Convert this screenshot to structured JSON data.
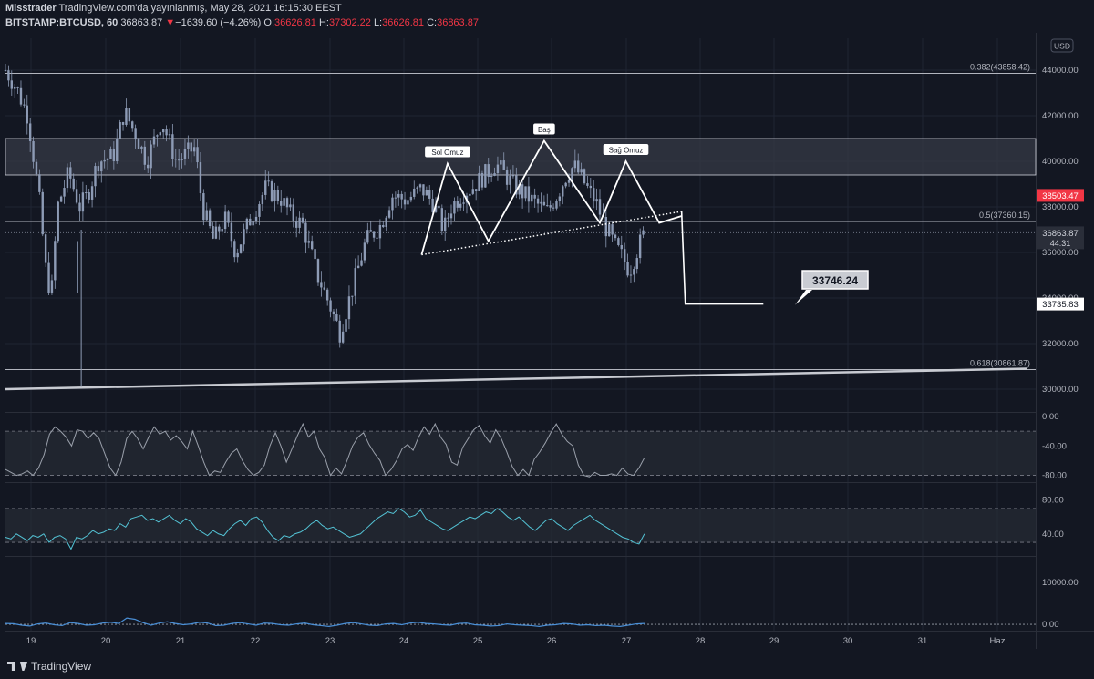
{
  "header": {
    "author": "Misstrader",
    "published": "TradingView.com'da yayınlanmış, May 28, 2021 16:15:30 EEST",
    "symbol": "BITSTAMP:BTCUSD, 60",
    "last_price": "36863.87",
    "change_arrow": "▼",
    "change": "−1639.60 (−4.26%)",
    "o_label": "O:",
    "o_value": "36626.81",
    "h_label": "H:",
    "h_value": "37302.22",
    "l_label": "L:",
    "l_value": "36626.81",
    "c_label": "C:",
    "c_value": "36863.87"
  },
  "colors": {
    "background": "#131722",
    "grid": "#1f2433",
    "candle": "#8d9bb5",
    "pattern_line": "#ffffff",
    "fib_line": "#b2b5be",
    "zone_fill": "#363a45",
    "osc_line": "#9aa0ab",
    "rsi_line": "#53c2d4",
    "bottom_line": "#4a8fd6",
    "price_badge_red": "#f23645"
  },
  "footer": {
    "logo_text": "TradingView"
  },
  "chart_data": {
    "type": "candlestick",
    "currency": "USD",
    "x_tick_labels": [
      "19",
      "20",
      "21",
      "22",
      "23",
      "24",
      "25",
      "26",
      "27",
      "28",
      "29",
      "30",
      "31",
      "Haz"
    ],
    "main_pane": {
      "y_ticks": [
        30000,
        32000,
        34000,
        36000,
        38000,
        40000,
        42000,
        44000
      ],
      "y_tick_labels": [
        "30000.00",
        "32000.00",
        "34000.00",
        "36000.00",
        "38000.00",
        "40000.00",
        "42000.00",
        "44000.00"
      ],
      "ylim": [
        29000,
        45400
      ],
      "close_path": [
        [
          0,
          44000
        ],
        [
          0.15,
          43200
        ],
        [
          0.3,
          42000
        ],
        [
          0.45,
          38500
        ],
        [
          0.55,
          35000
        ],
        [
          0.62,
          34200
        ],
        [
          0.7,
          38000
        ],
        [
          0.85,
          39500
        ],
        [
          1.0,
          38000
        ],
        [
          1.1,
          38500
        ],
        [
          1.25,
          40000
        ],
        [
          1.45,
          40200
        ],
        [
          1.6,
          42200
        ],
        [
          1.75,
          41200
        ],
        [
          1.9,
          40000
        ],
        [
          2.1,
          41800
        ],
        [
          2.3,
          40000
        ],
        [
          2.55,
          40600
        ],
        [
          2.65,
          38000
        ],
        [
          2.8,
          36500
        ],
        [
          2.95,
          37500
        ],
        [
          3.1,
          36000
        ],
        [
          3.3,
          37500
        ],
        [
          3.5,
          38800
        ],
        [
          3.7,
          38400
        ],
        [
          3.85,
          37600
        ],
        [
          4.0,
          37200
        ],
        [
          4.2,
          35000
        ],
        [
          4.35,
          33800
        ],
        [
          4.5,
          32500
        ],
        [
          4.65,
          34200
        ],
        [
          4.85,
          36500
        ],
        [
          5.05,
          37200
        ],
        [
          5.2,
          38500
        ],
        [
          5.4,
          38300
        ],
        [
          5.6,
          38800
        ],
        [
          5.75,
          38200
        ],
        [
          5.9,
          37000
        ],
        [
          6.0,
          38000
        ],
        [
          6.15,
          38600
        ],
        [
          6.3,
          38900
        ],
        [
          6.45,
          39400
        ],
        [
          6.6,
          39900
        ],
        [
          6.7,
          39500
        ],
        [
          6.85,
          38900
        ],
        [
          7.0,
          38500
        ],
        [
          7.2,
          38000
        ],
        [
          7.3,
          37800
        ],
        [
          7.45,
          38700
        ],
        [
          7.55,
          39400
        ],
        [
          7.65,
          39800
        ],
        [
          7.75,
          39300
        ],
        [
          7.85,
          38700
        ],
        [
          7.95,
          38200
        ],
        [
          8.05,
          37300
        ],
        [
          8.2,
          36300
        ],
        [
          8.3,
          35800
        ],
        [
          8.4,
          35200
        ],
        [
          8.5,
          36100
        ],
        [
          8.6,
          36863.87
        ]
      ],
      "current_price": 36863.87,
      "current_price_label": "36863.87",
      "countdown": "44:31",
      "red_badge_label": "38503.47",
      "red_badge_value": 38503.47,
      "target_label": "33746.24",
      "target_level": 33735.83,
      "target_level_label": "33735.83",
      "resistance_zone": [
        39400,
        41000
      ],
      "fib_levels": [
        {
          "label": "0.382(43858.42)",
          "value": 43858.42
        },
        {
          "label": "0.5(37360.15)",
          "value": 37360.15
        },
        {
          "label": "0.618(30861.87)",
          "value": 30861.87
        }
      ],
      "long_trendline": [
        [
          0,
          30000
        ],
        [
          10.8,
          30900
        ]
      ],
      "head_shoulders": {
        "path": [
          [
            5.6,
            35900
          ],
          [
            5.95,
            39900
          ],
          [
            6.5,
            36500
          ],
          [
            7.25,
            40900
          ],
          [
            8.0,
            37300
          ],
          [
            8.35,
            40000
          ],
          [
            8.8,
            37300
          ],
          [
            9.1,
            37600
          ]
        ],
        "neckline": [
          [
            5.6,
            35900
          ],
          [
            9.1,
            37800
          ]
        ],
        "drop": [
          [
            9.1,
            37800
          ],
          [
            9.15,
            33735.83
          ],
          [
            10.2,
            33735.83
          ]
        ],
        "labels": [
          {
            "text": "Sol Omuz",
            "x": 5.95,
            "y": 39900
          },
          {
            "text": "Baş",
            "x": 7.25,
            "y": 40900
          },
          {
            "text": "Sağ Omuz",
            "x": 8.35,
            "y": 40000
          }
        ]
      }
    },
    "osc_pane": {
      "y_tick_labels": [
        "0.00",
        "-40.00",
        "-80.00"
      ],
      "y_ticks": [
        0,
        -40,
        -80
      ],
      "ylim": [
        -88,
        5
      ],
      "band": [
        -80,
        -20
      ],
      "values": [
        -72,
        -76,
        -80,
        -78,
        -74,
        -80,
        -70,
        -52,
        -24,
        -14,
        -20,
        -28,
        -40,
        -18,
        -20,
        -30,
        -22,
        -30,
        -50,
        -70,
        -80,
        -62,
        -30,
        -20,
        -30,
        -44,
        -28,
        -14,
        -24,
        -20,
        -32,
        -26,
        -34,
        -44,
        -20,
        -40,
        -62,
        -80,
        -74,
        -76,
        -62,
        -50,
        -44,
        -60,
        -72,
        -80,
        -76,
        -66,
        -40,
        -22,
        -40,
        -62,
        -44,
        -26,
        -10,
        -28,
        -20,
        -44,
        -56,
        -80,
        -70,
        -78,
        -60,
        -40,
        -28,
        -22,
        -38,
        -50,
        -60,
        -80,
        -72,
        -60,
        -44,
        -38,
        -46,
        -28,
        -14,
        -24,
        -10,
        -28,
        -38,
        -62,
        -66,
        -42,
        -30,
        -18,
        -12,
        -26,
        -36,
        -18,
        -30,
        -48,
        -68,
        -80,
        -72,
        -80,
        -58,
        -48,
        -36,
        -22,
        -10,
        -24,
        -34,
        -40,
        -66,
        -80,
        -82,
        -76,
        -80,
        -80,
        -78,
        -80,
        -70,
        -78,
        -80,
        -70,
        -56
      ]
    },
    "rsi_pane": {
      "y_tick_labels": [
        "80.00",
        "40.00"
      ],
      "y_ticks": [
        80,
        40
      ],
      "ylim": [
        15,
        100
      ],
      "band": [
        30,
        70
      ],
      "values": [
        36,
        34,
        40,
        36,
        32,
        38,
        36,
        40,
        30,
        36,
        38,
        34,
        22,
        36,
        34,
        38,
        44,
        40,
        42,
        46,
        44,
        52,
        48,
        58,
        60,
        62,
        56,
        58,
        54,
        58,
        62,
        56,
        52,
        58,
        54,
        46,
        42,
        38,
        44,
        40,
        38,
        46,
        52,
        56,
        50,
        58,
        60,
        54,
        44,
        36,
        32,
        38,
        36,
        40,
        42,
        46,
        52,
        56,
        50,
        46,
        48,
        44,
        40,
        36,
        38,
        40,
        46,
        52,
        58,
        62,
        66,
        64,
        70,
        66,
        60,
        62,
        68,
        58,
        54,
        50,
        46,
        44,
        48,
        52,
        56,
        60,
        58,
        62,
        66,
        64,
        70,
        66,
        60,
        56,
        60,
        54,
        48,
        44,
        50,
        56,
        58,
        52,
        48,
        44,
        50,
        54,
        58,
        62,
        56,
        52,
        48,
        44,
        40,
        36,
        34,
        30,
        28,
        40
      ]
    },
    "bottom_pane": {
      "y_tick_labels": [
        "10000.00",
        "0.00"
      ],
      "y_ticks": [
        10000,
        0
      ],
      "ylim": [
        -1500,
        16000
      ],
      "values": [
        200,
        150,
        -200,
        -400,
        100,
        300,
        -100,
        -300,
        400,
        200,
        -200,
        -100,
        300,
        500,
        200,
        1500,
        1200,
        400,
        -200,
        300,
        600,
        200,
        -100,
        100,
        500,
        300,
        -300,
        -200,
        200,
        400,
        100,
        -200,
        300,
        200,
        -100,
        -200,
        100,
        300,
        -100,
        -300,
        -500,
        -200,
        200,
        400,
        100,
        -200,
        -300,
        100,
        200,
        -100,
        300,
        500,
        200,
        100,
        -100,
        -200,
        200,
        300,
        -100,
        -200,
        -400,
        -300,
        100,
        -100,
        -200,
        -300,
        -500,
        -200,
        -100,
        200,
        100,
        -200,
        -100,
        -300,
        -200,
        -400,
        -500,
        -200,
        100,
        200
      ]
    }
  }
}
